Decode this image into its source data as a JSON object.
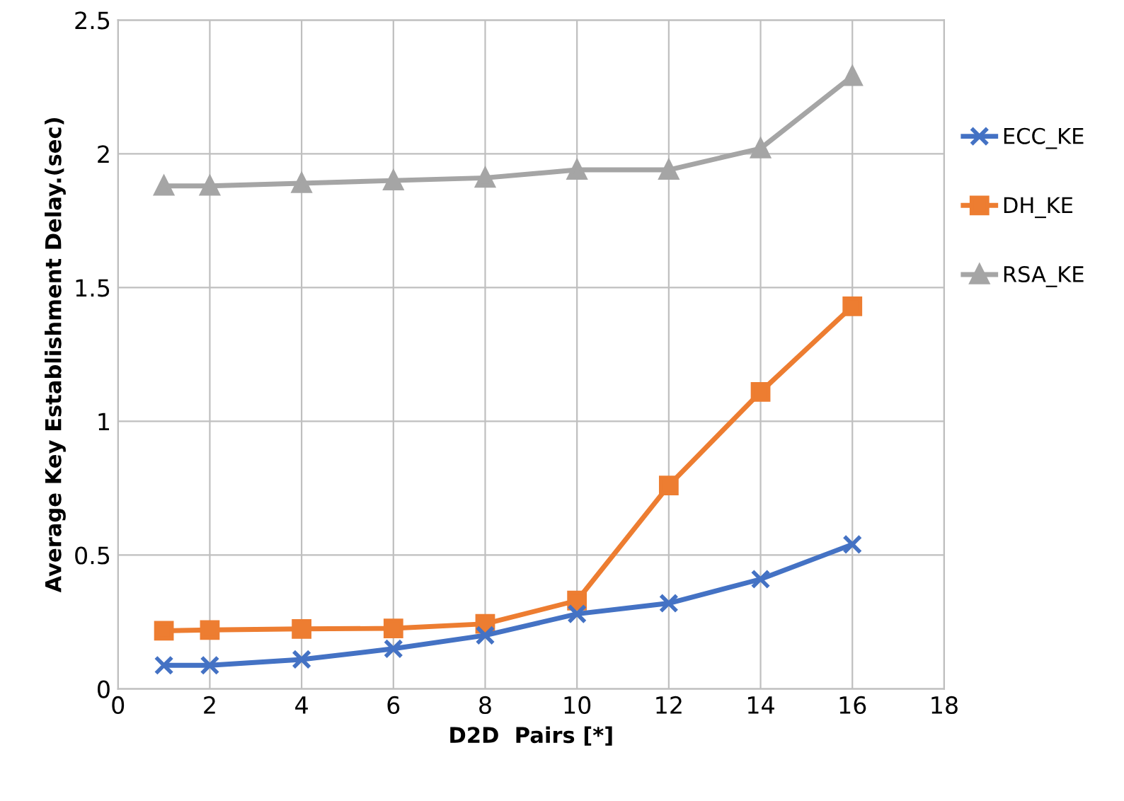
{
  "chart_data": {
    "type": "line",
    "xlabel": "D2D  Pairs [*]",
    "ylabel": "Average Key Establishment Delay.(sec)",
    "xlim": [
      0,
      18
    ],
    "xticks": [
      0,
      2,
      4,
      6,
      8,
      10,
      12,
      14,
      16,
      18
    ],
    "ylim": [
      0,
      2.5
    ],
    "yticks": [
      {
        "value": 0,
        "label": "0"
      },
      {
        "value": 0.5,
        "label": "0.5"
      },
      {
        "value": 1,
        "label": "1"
      },
      {
        "value": 1.5,
        "label": "1.5"
      },
      {
        "value": 2,
        "label": "2"
      },
      {
        "value": 2.5,
        "label": "2.5"
      }
    ],
    "grid": true,
    "legend": "right",
    "line_style": "solid",
    "series": [
      {
        "name": "ECC_KE",
        "color": "#4472c4",
        "marker": "cross",
        "x": [
          1,
          2,
          4,
          6,
          8,
          10,
          12,
          14,
          16
        ],
        "values": [
          0.088,
          0.088,
          0.11,
          0.15,
          0.2,
          0.28,
          0.32,
          0.41,
          0.54
        ]
      },
      {
        "name": "DH_KE",
        "color": "#ed7d31",
        "marker": "square",
        "x": [
          1,
          2,
          4,
          6,
          8,
          10,
          12,
          14,
          16
        ],
        "values": [
          0.217,
          0.22,
          0.224,
          0.226,
          0.243,
          0.33,
          0.76,
          1.11,
          1.43
        ]
      },
      {
        "name": "RSA_KE",
        "color": "#a5a5a5",
        "marker": "triangle",
        "x": [
          1,
          2,
          4,
          6,
          8,
          10,
          12,
          14,
          16
        ],
        "values": [
          1.88,
          1.88,
          1.89,
          1.9,
          1.91,
          1.94,
          1.94,
          2.02,
          2.29
        ]
      }
    ]
  }
}
